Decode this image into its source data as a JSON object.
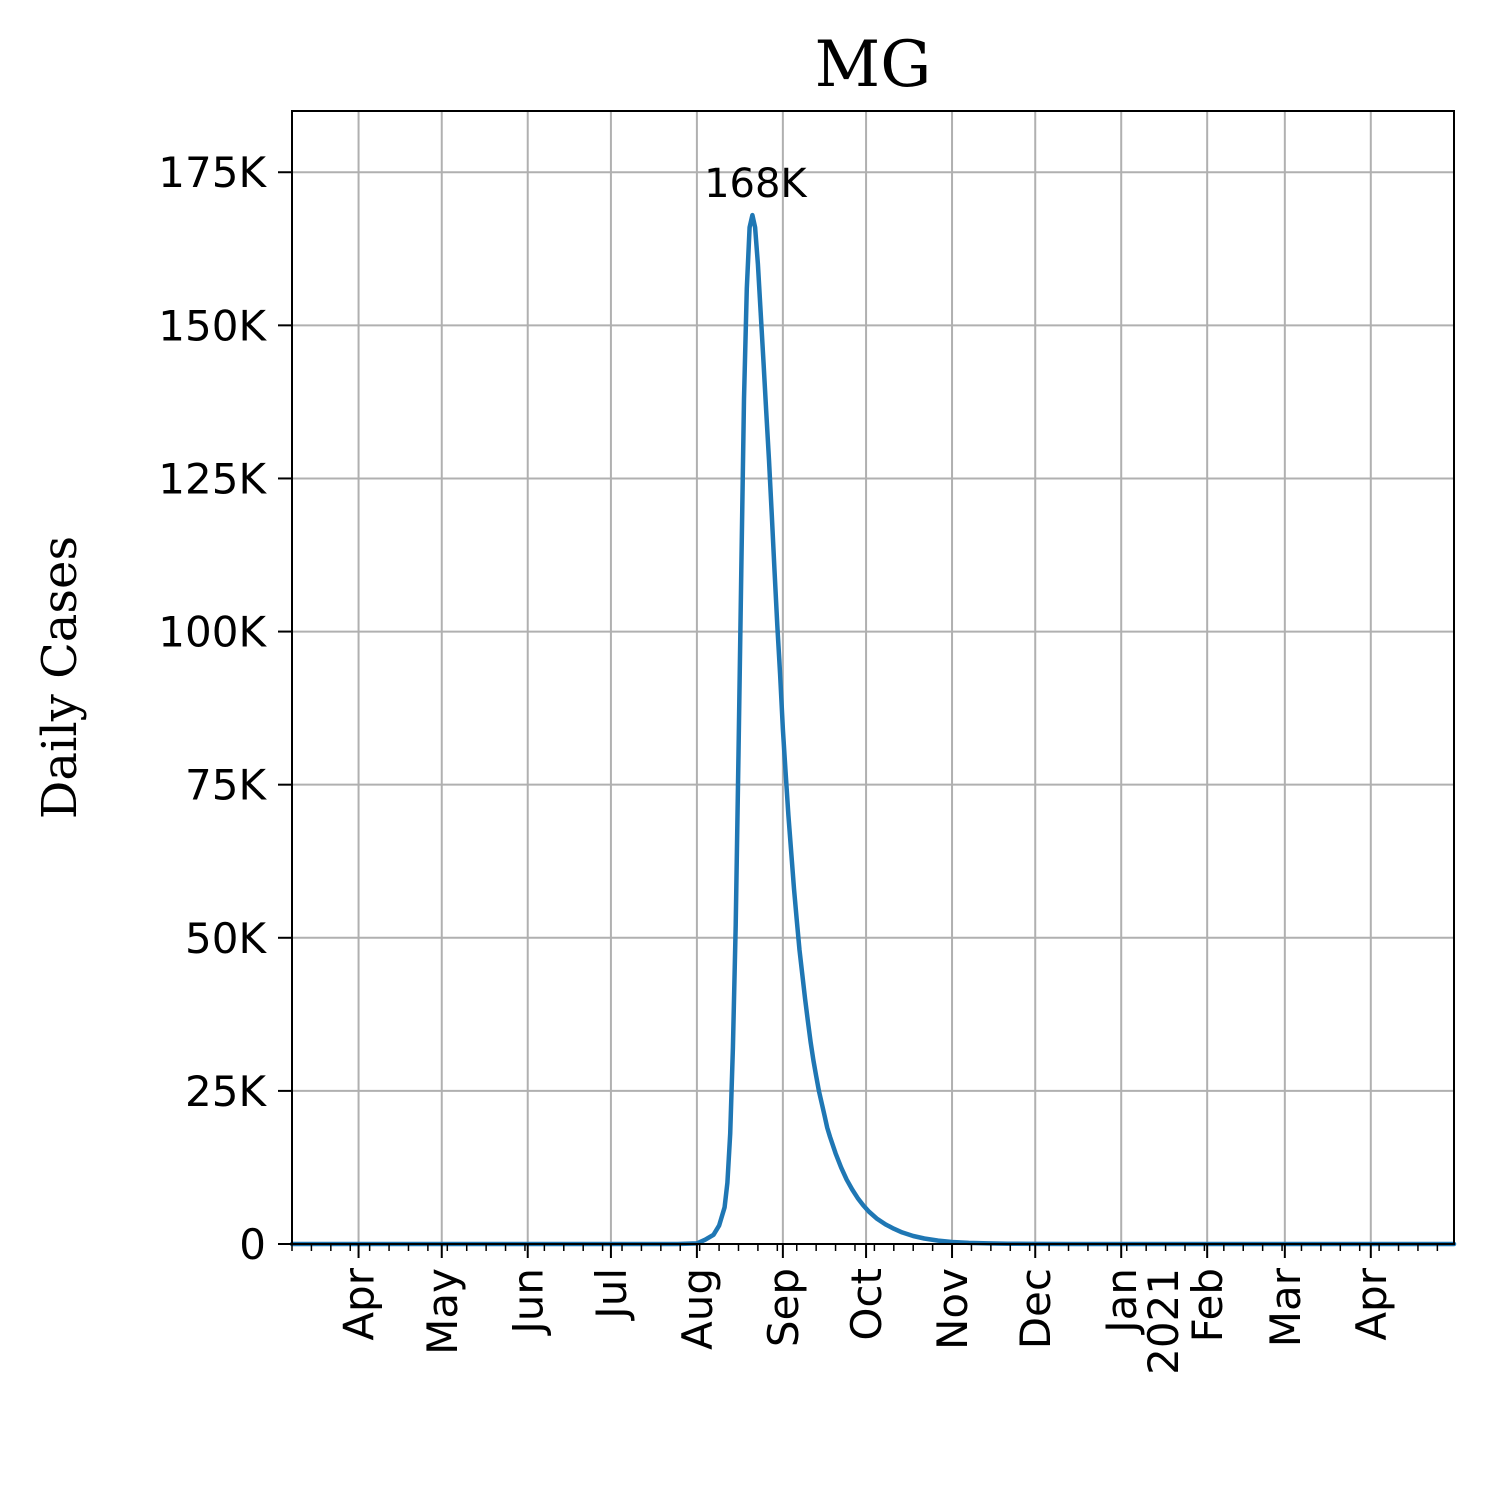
{
  "chart_data": {
    "type": "line",
    "title": "MG",
    "ylabel": "Daily Cases",
    "xlabel": "",
    "grid": true,
    "xlim": [
      "2020-03-08",
      "2021-05-01"
    ],
    "ylim": [
      0,
      185000
    ],
    "x_ticks": [
      {
        "date": "2020-04-01",
        "label": "Apr"
      },
      {
        "date": "2020-05-01",
        "label": "May"
      },
      {
        "date": "2020-06-01",
        "label": "Jun"
      },
      {
        "date": "2020-07-01",
        "label": "Jul"
      },
      {
        "date": "2020-08-01",
        "label": "Aug"
      },
      {
        "date": "2020-09-01",
        "label": "Sep"
      },
      {
        "date": "2020-10-01",
        "label": "Oct"
      },
      {
        "date": "2020-11-01",
        "label": "Nov"
      },
      {
        "date": "2020-12-01",
        "label": "Dec"
      },
      {
        "date": "2021-01-01",
        "label": "Jan\n2021"
      },
      {
        "date": "2021-02-01",
        "label": "Feb"
      },
      {
        "date": "2021-03-01",
        "label": "Mar"
      },
      {
        "date": "2021-04-01",
        "label": "Apr"
      }
    ],
    "y_ticks": [
      {
        "value": 0,
        "label": "0"
      },
      {
        "value": 25000,
        "label": "25K"
      },
      {
        "value": 50000,
        "label": "50K"
      },
      {
        "value": 75000,
        "label": "75K"
      },
      {
        "value": 100000,
        "label": "100K"
      },
      {
        "value": 125000,
        "label": "125K"
      },
      {
        "value": 150000,
        "label": "150K"
      },
      {
        "value": 175000,
        "label": "175K"
      }
    ],
    "series": [
      {
        "color": "#1f77b4",
        "x": [
          "2020-03-08",
          "2020-04-01",
          "2020-05-01",
          "2020-06-01",
          "2020-07-01",
          "2020-07-25",
          "2020-08-01",
          "2020-08-04",
          "2020-08-07",
          "2020-08-09",
          "2020-08-11",
          "2020-08-12",
          "2020-08-13",
          "2020-08-14",
          "2020-08-15",
          "2020-08-16",
          "2020-08-17",
          "2020-08-18",
          "2020-08-19",
          "2020-08-20",
          "2020-08-21",
          "2020-08-22",
          "2020-08-23",
          "2020-08-24",
          "2020-08-25",
          "2020-08-26",
          "2020-08-27",
          "2020-08-28",
          "2020-08-29",
          "2020-08-30",
          "2020-08-31",
          "2020-09-01",
          "2020-09-02",
          "2020-09-03",
          "2020-09-04",
          "2020-09-05",
          "2020-09-06",
          "2020-09-07",
          "2020-09-08",
          "2020-09-09",
          "2020-09-10",
          "2020-09-11",
          "2020-09-12",
          "2020-09-13",
          "2020-09-14",
          "2020-09-15",
          "2020-09-16",
          "2020-09-17",
          "2020-09-18",
          "2020-09-20",
          "2020-09-22",
          "2020-09-24",
          "2020-09-26",
          "2020-09-28",
          "2020-09-30",
          "2020-10-02",
          "2020-10-05",
          "2020-10-08",
          "2020-10-11",
          "2020-10-14",
          "2020-10-18",
          "2020-10-22",
          "2020-10-27",
          "2020-11-01",
          "2020-11-07",
          "2020-11-14",
          "2020-11-21",
          "2020-12-01",
          "2020-12-15",
          "2021-01-01",
          "2021-02-01",
          "2021-03-01",
          "2021-04-01",
          "2021-05-01"
        ],
        "values": [
          0,
          0,
          0,
          0,
          0,
          0,
          100,
          700,
          1500,
          3000,
          6000,
          10000,
          18000,
          32000,
          52000,
          80000,
          110000,
          138000,
          156000,
          166000,
          168000,
          166000,
          160000,
          152000,
          144000,
          136000,
          128000,
          119000,
          110000,
          101000,
          93000,
          84000,
          77000,
          70000,
          64000,
          58000,
          53000,
          48000,
          44000,
          40000,
          36500,
          33000,
          30000,
          27500,
          25000,
          23000,
          21000,
          19000,
          17500,
          14800,
          12500,
          10500,
          8900,
          7500,
          6300,
          5300,
          4100,
          3200,
          2500,
          1900,
          1300,
          900,
          550,
          330,
          180,
          90,
          45,
          20,
          8,
          3,
          1,
          0,
          0,
          0
        ]
      }
    ],
    "annotations": [
      {
        "text": "168K",
        "x": "2020-08-21",
        "y": 168000
      }
    ]
  }
}
